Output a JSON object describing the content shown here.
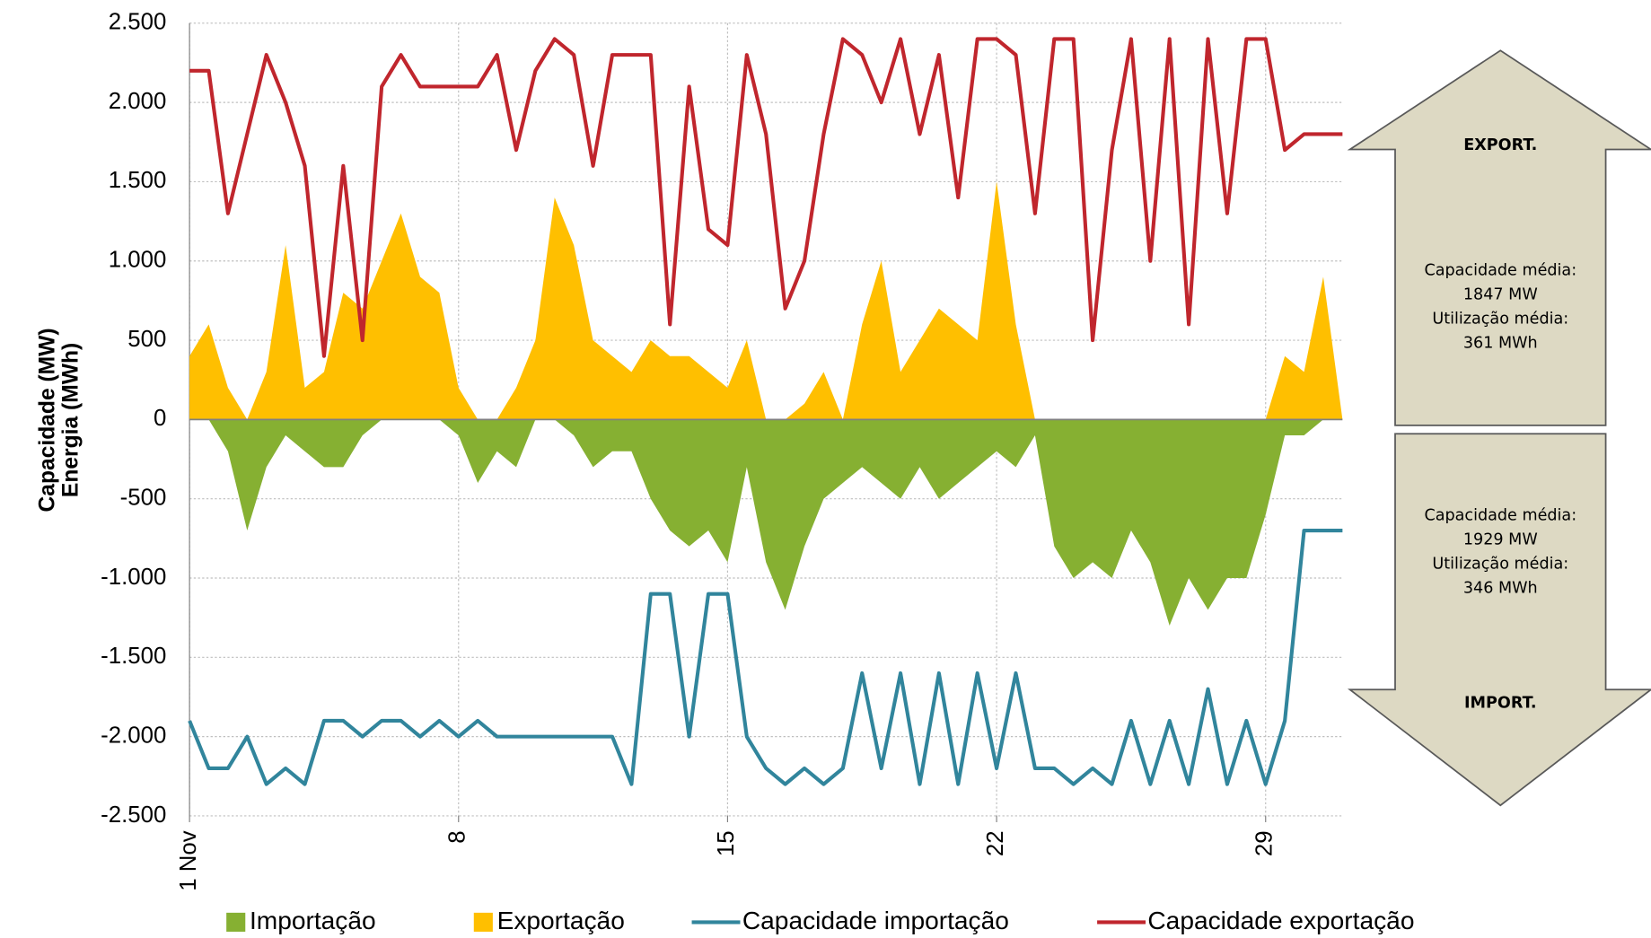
{
  "chart_data": {
    "type": "area",
    "ylabel": [
      "Capacidade (MW)",
      "Energia (MWh)"
    ],
    "x": [
      1,
      1.5,
      2,
      2.5,
      3,
      3.5,
      4,
      4.5,
      5,
      5.5,
      6,
      6.5,
      7,
      7.5,
      8,
      8.5,
      9,
      9.5,
      10,
      10.5,
      11,
      11.5,
      12,
      12.5,
      13,
      13.5,
      14,
      14.5,
      15,
      15.5,
      16,
      16.5,
      17,
      17.5,
      18,
      18.5,
      19,
      19.5,
      20,
      20.5,
      21,
      21.5,
      22,
      22.5,
      23,
      23.5,
      24,
      24.5,
      25,
      25.5,
      26,
      26.5,
      27,
      27.5,
      28,
      28.5,
      29,
      29.5,
      30,
      30.5,
      31
    ],
    "xlim": [
      1,
      31
    ],
    "xticks": [
      {
        "value": 1,
        "label": "1 Nov"
      },
      8,
      15,
      22,
      29
    ],
    "ylim": [
      -2500,
      2500
    ],
    "yticks": [
      {
        "value": -2500,
        "label": "-2.500"
      },
      {
        "value": -2000,
        "label": "-2.000"
      },
      {
        "value": -1500,
        "label": "-1.500"
      },
      {
        "value": -1000,
        "label": "-1.000"
      },
      -500,
      0,
      500,
      {
        "value": 1000,
        "label": "1.000"
      },
      {
        "value": 1500,
        "label": "1.500"
      },
      {
        "value": 2000,
        "label": "2.000"
      },
      {
        "value": 2500,
        "label": "2.500"
      }
    ],
    "grid": true,
    "legend": "bottom",
    "series": [
      {
        "name": "Importação",
        "type": "area",
        "color": "#86b032",
        "values": [
          0,
          0,
          -200,
          -700,
          -300,
          -100,
          -200,
          -300,
          -300,
          -100,
          0,
          0,
          0,
          0,
          -100,
          -400,
          -200,
          -300,
          0,
          0,
          -100,
          -300,
          -200,
          -200,
          -500,
          -700,
          -800,
          -700,
          -900,
          -300,
          -900,
          -1200,
          -800,
          -500,
          -400,
          -300,
          -400,
          -500,
          -300,
          -500,
          -400,
          -300,
          -200,
          -300,
          -100,
          -800,
          -1000,
          -900,
          -1000,
          -700,
          -900,
          -1300,
          -1000,
          -1200,
          -1000,
          -1000,
          -600,
          -100,
          -100,
          0,
          0
        ]
      },
      {
        "name": "Exportação",
        "type": "area",
        "color": "#ffbf00",
        "values": [
          400,
          600,
          200,
          0,
          300,
          1100,
          200,
          300,
          800,
          700,
          1000,
          1300,
          900,
          800,
          200,
          0,
          0,
          200,
          500,
          1400,
          1100,
          500,
          400,
          300,
          500,
          400,
          400,
          300,
          200,
          500,
          0,
          0,
          100,
          300,
          0,
          600,
          1000,
          300,
          500,
          700,
          600,
          500,
          1500,
          600,
          0,
          0,
          0,
          0,
          0,
          0,
          0,
          0,
          0,
          0,
          0,
          0,
          0,
          400,
          300,
          900,
          0
        ]
      },
      {
        "name": "Capacidade importação",
        "type": "line",
        "color": "#31859c",
        "values": [
          -1900,
          -2200,
          -2200,
          -2000,
          -2300,
          -2200,
          -2300,
          -1900,
          -1900,
          -2000,
          -1900,
          -1900,
          -2000,
          -1900,
          -2000,
          -1900,
          -2000,
          -2000,
          -2000,
          -2000,
          -2000,
          -2000,
          -2000,
          -2300,
          -1100,
          -1100,
          -2000,
          -1100,
          -1100,
          -2000,
          -2200,
          -2300,
          -2200,
          -2300,
          -2200,
          -1600,
          -2200,
          -1600,
          -2300,
          -1600,
          -2300,
          -1600,
          -2200,
          -1600,
          -2200,
          -2200,
          -2300,
          -2200,
          -2300,
          -1900,
          -2300,
          -1900,
          -2300,
          -1700,
          -2300,
          -1900,
          -2300,
          -1900,
          -700,
          -700,
          -700
        ]
      },
      {
        "name": "Capacidade exportação",
        "type": "line",
        "color": "#c0262d",
        "values": [
          2200,
          2200,
          1300,
          1800,
          2300,
          2000,
          1600,
          400,
          1600,
          500,
          2100,
          2300,
          2100,
          2100,
          2100,
          2100,
          2300,
          1700,
          2200,
          2400,
          2300,
          1600,
          2300,
          2300,
          2300,
          600,
          2100,
          1200,
          1100,
          2300,
          1800,
          700,
          1000,
          1800,
          2400,
          2300,
          2000,
          2400,
          1800,
          2300,
          1400,
          2400,
          2400,
          2300,
          1300,
          2400,
          2400,
          500,
          1700,
          2400,
          1000,
          2400,
          600,
          2400,
          1300,
          2400,
          2400,
          1700,
          1800,
          1800,
          1800
        ]
      }
    ],
    "export_box": {
      "title": "EXPORT.",
      "lines": [
        "Capacidade média:",
        "1847 MW",
        "Utilização média:",
        "361 MWh"
      ]
    },
    "import_box": {
      "title": "IMPORT.",
      "lines": [
        "Capacidade média:",
        "1929 MW",
        "Utilização média:",
        "346 MWh"
      ]
    }
  }
}
